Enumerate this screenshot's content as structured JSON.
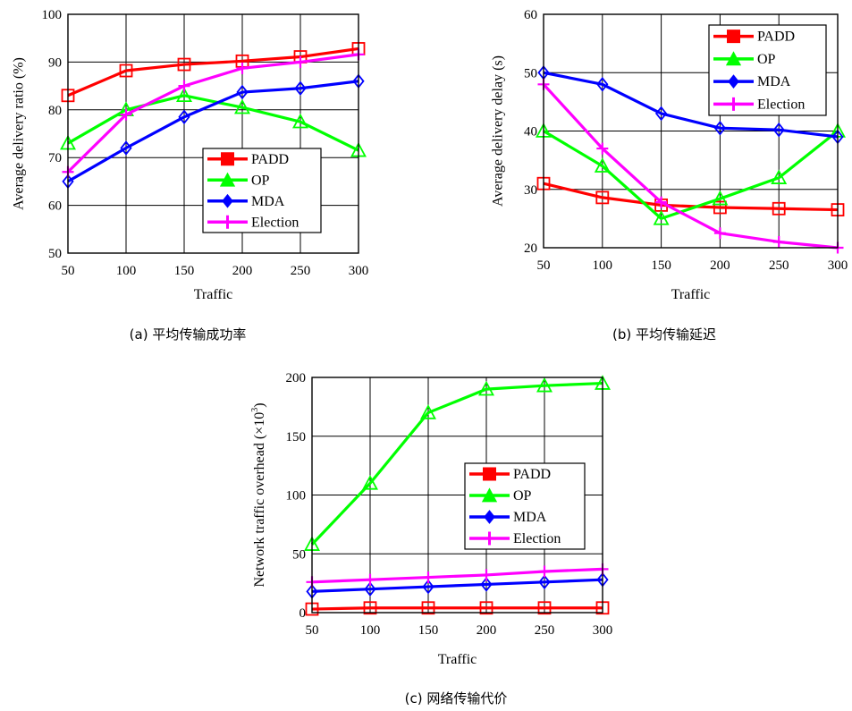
{
  "chart_data": [
    {
      "type": "line",
      "x": [
        50,
        100,
        150,
        200,
        250,
        300
      ],
      "xlabel": "Traffic",
      "ylabel": "Average delivery ratio (%)",
      "xlim": [
        50,
        300
      ],
      "ylim": [
        50,
        100
      ],
      "yticks": [
        50,
        60,
        70,
        80,
        90,
        100
      ],
      "grid": true,
      "legend": "lower-right",
      "caption": "(a)  平均传输成功率",
      "series": [
        {
          "name": "PADD",
          "values": [
            83,
            88.2,
            89.5,
            90.2,
            91.1,
            92.8
          ]
        },
        {
          "name": "OP",
          "values": [
            73,
            80,
            83,
            80.5,
            77.5,
            71.5
          ]
        },
        {
          "name": "MDA",
          "values": [
            65,
            72,
            78.5,
            83.7,
            84.5,
            86
          ]
        },
        {
          "name": "Election",
          "values": [
            67,
            79,
            85,
            88.7,
            90,
            91.6
          ]
        }
      ]
    },
    {
      "type": "line",
      "x": [
        50,
        100,
        150,
        200,
        250,
        300
      ],
      "xlabel": "Traffic",
      "ylabel": "Average delivery delay (s)",
      "xlim": [
        50,
        300
      ],
      "ylim": [
        20,
        60
      ],
      "yticks": [
        20,
        30,
        40,
        50,
        60
      ],
      "grid": true,
      "legend": "top-right",
      "caption": "(b)  平均传输延迟",
      "series": [
        {
          "name": "PADD",
          "values": [
            31,
            28.6,
            27.3,
            26.9,
            26.7,
            26.5
          ]
        },
        {
          "name": "OP",
          "values": [
            40,
            34,
            25,
            28.4,
            32,
            40
          ]
        },
        {
          "name": "MDA",
          "values": [
            50,
            48,
            43,
            40.5,
            40.2,
            39
          ]
        },
        {
          "name": "Election",
          "values": [
            48,
            37,
            27.8,
            22.5,
            21,
            20
          ]
        }
      ]
    },
    {
      "type": "line",
      "x": [
        50,
        100,
        150,
        200,
        250,
        300
      ],
      "xlabel": "Traffic",
      "ylabel": "Network traffic overhead (×10",
      "ylabel_sup": "3",
      "ylabel_end": ")",
      "xlim": [
        50,
        300
      ],
      "ylim": [
        0,
        200
      ],
      "yticks": [
        0,
        50,
        100,
        150,
        200
      ],
      "grid": true,
      "legend": "center-right",
      "caption": "(c)  网络传输代价",
      "series": [
        {
          "name": "PADD",
          "values": [
            3,
            4,
            4,
            4,
            4,
            4
          ]
        },
        {
          "name": "OP",
          "values": [
            58,
            110,
            170,
            190,
            193,
            195
          ]
        },
        {
          "name": "MDA",
          "values": [
            18,
            20,
            22,
            24,
            26,
            28
          ]
        },
        {
          "name": "Election",
          "values": [
            26,
            28,
            30,
            32,
            35,
            37
          ]
        }
      ]
    }
  ],
  "colors": {
    "PADD": "#ff0000",
    "OP": "#00ff00",
    "MDA": "#0000ff",
    "Election": "#ff00ff"
  },
  "markers": {
    "PADD": "square",
    "OP": "triangle",
    "MDA": "diamond",
    "Election": "plus"
  }
}
